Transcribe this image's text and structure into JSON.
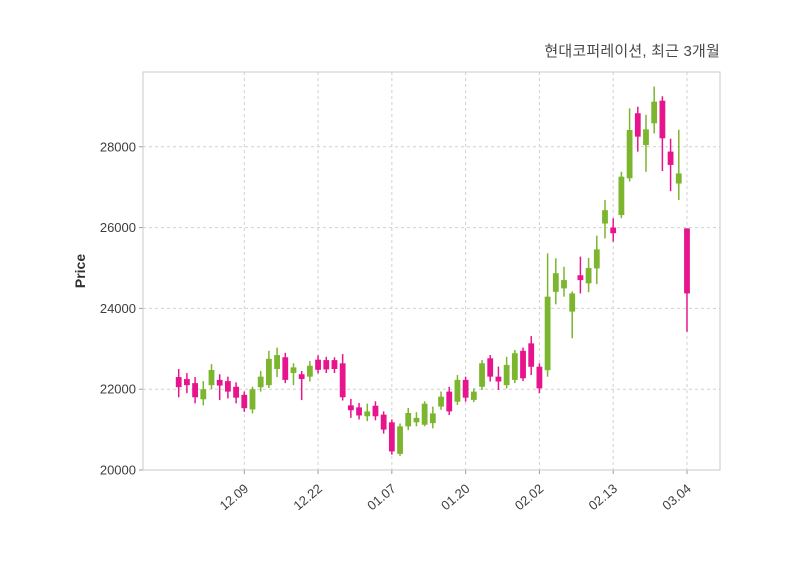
{
  "title": "현대코퍼레이션, 최근 3개월",
  "ylabel": "Price",
  "colors": {
    "background": "#ffffff",
    "up": "#7CB52E",
    "down": "#E7158D",
    "grid": "#d0d0d0",
    "spine": "#c8c8c8",
    "tick_label": "#3d3d3d",
    "title_text": "#4a4a4a"
  },
  "chart_data": {
    "type": "candlestick",
    "title": "현대코퍼레이션, 최근 3개월",
    "xlabel": "",
    "ylabel": "Price",
    "grid": true,
    "legend_position": "none",
    "ylim": [
      20000,
      29850
    ],
    "y_ticks": [
      20000,
      22000,
      24000,
      26000,
      28000
    ],
    "x_tick_labels": [
      "12.09",
      "12.22",
      "01.07",
      "01.20",
      "02.02",
      "02.13",
      "03.04"
    ],
    "x_tick_indices": [
      8,
      17,
      26,
      35,
      44,
      53,
      62
    ],
    "ohlc_order": [
      "open",
      "high",
      "low",
      "close"
    ],
    "candles_ohlc": [
      [
        22300,
        22500,
        21800,
        22050
      ],
      [
        22250,
        22400,
        21900,
        22100
      ],
      [
        22150,
        22300,
        21650,
        21800
      ],
      [
        21750,
        22200,
        21600,
        22000
      ],
      [
        22100,
        22620,
        22000,
        22475
      ],
      [
        22230,
        22370,
        21730,
        22090
      ],
      [
        22200,
        22310,
        21770,
        21940
      ],
      [
        22060,
        22170,
        21650,
        21790
      ],
      [
        21860,
        21940,
        21440,
        21530
      ],
      [
        21500,
        22060,
        21400,
        22000
      ],
      [
        22050,
        22450,
        21940,
        22310
      ],
      [
        22100,
        22950,
        22030,
        22750
      ],
      [
        22500,
        23030,
        22300,
        22845
      ],
      [
        22790,
        22900,
        22150,
        22230
      ],
      [
        22400,
        22640,
        22100,
        22540
      ],
      [
        22370,
        22450,
        21730,
        22250
      ],
      [
        22310,
        22700,
        22190,
        22580
      ],
      [
        22730,
        22840,
        22390,
        22480
      ],
      [
        22720,
        22800,
        22400,
        22490
      ],
      [
        22720,
        22790,
        22400,
        22500
      ],
      [
        22640,
        22870,
        21720,
        21800
      ],
      [
        21600,
        21760,
        21290,
        21480
      ],
      [
        21550,
        21660,
        21250,
        21350
      ],
      [
        21330,
        21640,
        21210,
        21450
      ],
      [
        21590,
        21700,
        21230,
        21330
      ],
      [
        21370,
        21450,
        20900,
        21000
      ],
      [
        21180,
        21250,
        20380,
        20460
      ],
      [
        20400,
        21150,
        20350,
        21080
      ],
      [
        21080,
        21535,
        20990,
        21410
      ],
      [
        21180,
        21430,
        21080,
        21290
      ],
      [
        21120,
        21700,
        21080,
        21640
      ],
      [
        21160,
        21570,
        21030,
        21400
      ],
      [
        21570,
        21940,
        21490,
        21815
      ],
      [
        21940,
        22060,
        21360,
        21450
      ],
      [
        21690,
        22350,
        21610,
        22230
      ],
      [
        22230,
        22310,
        21690,
        21790
      ],
      [
        21735,
        22020,
        21680,
        21940
      ],
      [
        22060,
        22720,
        21980,
        22640
      ],
      [
        22765,
        22845,
        22190,
        22310
      ],
      [
        22310,
        22560,
        21980,
        22190
      ],
      [
        22100,
        22800,
        22020,
        22600
      ],
      [
        22230,
        22970,
        22150,
        22890
      ],
      [
        22950,
        23030,
        22200,
        22270
      ],
      [
        23135,
        23315,
        22350,
        22555
      ],
      [
        22556,
        22640,
        21900,
        22020
      ],
      [
        22470,
        25360,
        22310,
        24290
      ],
      [
        24410,
        25240,
        24100,
        24870
      ],
      [
        24495,
        25030,
        24290,
        24700
      ],
      [
        23920,
        24420,
        23260,
        24370
      ],
      [
        24820,
        25280,
        24370,
        24700
      ],
      [
        24620,
        25250,
        24400,
        25000
      ],
      [
        24990,
        25800,
        24600,
        25460
      ],
      [
        26100,
        26680,
        25730,
        26430
      ],
      [
        26000,
        26230,
        25650,
        25860
      ],
      [
        26310,
        27380,
        26230,
        27260
      ],
      [
        27220,
        28950,
        27140,
        28415
      ],
      [
        28830,
        28990,
        27880,
        28250
      ],
      [
        28040,
        28790,
        27380,
        28430
      ],
      [
        28580,
        29490,
        28330,
        29115
      ],
      [
        29140,
        29250,
        27400,
        28210
      ],
      [
        27880,
        28200,
        26900,
        27550
      ],
      [
        27090,
        28420,
        26680,
        27340
      ],
      [
        25980,
        25980,
        23420,
        24370
      ]
    ]
  }
}
